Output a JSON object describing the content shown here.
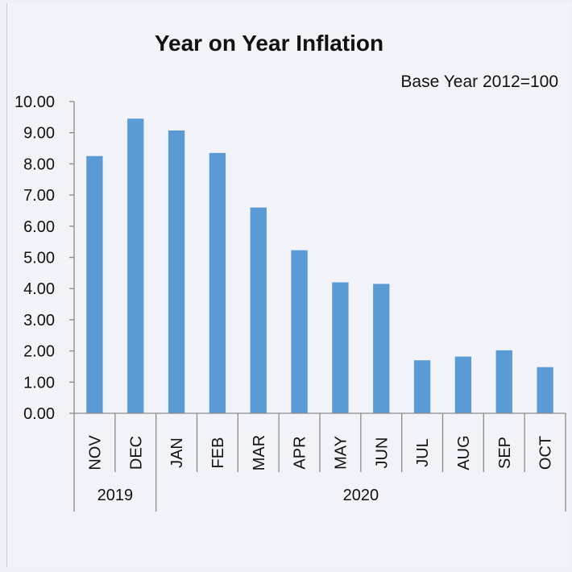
{
  "chart_data": {
    "type": "bar",
    "title": "Year on Year Inflation",
    "subtitle": "Base Year 2012=100",
    "xlabel": "",
    "ylabel": "",
    "categories": [
      "NOV",
      "DEC",
      "JAN",
      "FEB",
      "MAR",
      "APR",
      "MAY",
      "JUN",
      "JUL",
      "AUG",
      "SEP",
      "OCT"
    ],
    "groups": [
      {
        "label": "2019",
        "count": 2
      },
      {
        "label": "2020",
        "count": 10
      }
    ],
    "values": [
      8.25,
      9.45,
      9.07,
      8.35,
      6.6,
      5.23,
      4.2,
      4.15,
      1.7,
      1.82,
      2.02,
      1.48
    ],
    "ylim": [
      0,
      10
    ],
    "yticks": [
      "0.00",
      "1.00",
      "2.00",
      "3.00",
      "4.00",
      "5.00",
      "6.00",
      "7.00",
      "8.00",
      "9.00",
      "10.00"
    ],
    "grid": false,
    "bar_color": "#5b9bd5"
  }
}
